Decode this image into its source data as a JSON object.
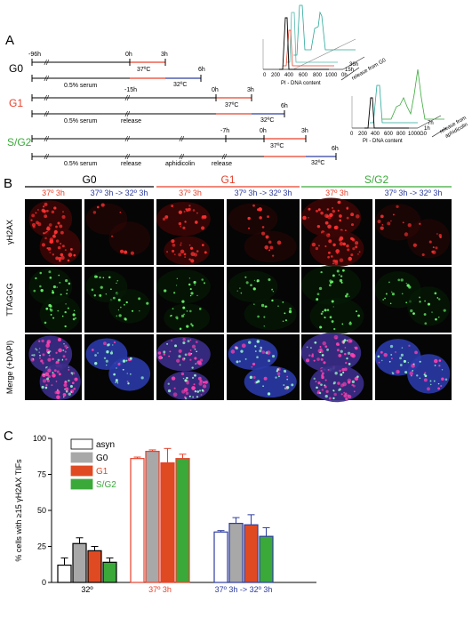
{
  "panel_a": {
    "letter": "A",
    "colors": {
      "black": "#000000",
      "red": "#e8412b",
      "blue": "#2e3da0",
      "green": "#3aa93a",
      "teal": "#2aa89a"
    },
    "g0": {
      "label": "G0",
      "t_neg96": "-96h",
      "t_0": "0h",
      "t_3": "3h",
      "t_6": "6h",
      "serum": "0.5% serum",
      "temp37": "37ºC",
      "temp32": "32ºC"
    },
    "g1": {
      "label": "G1",
      "t_neg15": "-15h",
      "t_0": "0h",
      "t_3": "3h",
      "t_6": "6h",
      "serum": "0.5% serum",
      "release": "release",
      "temp37": "37ºC",
      "temp32": "32ºC"
    },
    "sg2": {
      "label": "S/G2",
      "t_neg7": "-7h",
      "t_0": "0h",
      "t_3": "3h",
      "t_6": "6h",
      "serum": "0.5% serum",
      "release1": "release",
      "aphidicolin": "aphidicolin",
      "release2": "release",
      "temp37": "37ºC",
      "temp32": "32ºC"
    },
    "histo_g0": {
      "ticks": [
        "0",
        "200",
        "400",
        "600",
        "800",
        "1000"
      ],
      "xlabel": "PI - DNA content",
      "series_labels": [
        "36h",
        "15h",
        "0h"
      ],
      "caption": "release from G0"
    },
    "histo_sg2": {
      "ticks": [
        "0",
        "200",
        "400",
        "600",
        "800",
        "1000"
      ],
      "xlabel": "PI - DNA content",
      "series_labels": [
        "7h",
        "1h",
        "G0"
      ],
      "caption_line1": "release from",
      "caption_line2": "aphidicolin"
    }
  },
  "panel_b": {
    "letter": "B",
    "groups": [
      {
        "name": "G0",
        "color": "#000000"
      },
      {
        "name": "G1",
        "color": "#e8412b"
      },
      {
        "name": "S/G2",
        "color": "#3aa93a"
      }
    ],
    "col_labels": [
      {
        "text": "37º 3h",
        "color": "#e8412b"
      },
      {
        "text": "37º 3h -> 32º 3h",
        "color": "#2e3da0"
      },
      {
        "text": "37º 3h",
        "color": "#e8412b"
      },
      {
        "text": "37º 3h -> 32º 3h",
        "color": "#2e3da0"
      },
      {
        "text": "37º 3h",
        "color": "#e8412b"
      },
      {
        "text": "37º 3h -> 32º 3h",
        "color": "#2e3da0"
      }
    ],
    "row_labels": [
      "γH2AX",
      "TTAGGG",
      "Merge (+DAPI)"
    ]
  },
  "panel_c": {
    "letter": "C",
    "chart_data": {
      "type": "bar",
      "ylabel": "% cells with ≥15 γH2AX TIFs",
      "ylim": [
        0,
        100
      ],
      "yticks": [
        "0",
        "25",
        "50",
        "75",
        "100"
      ],
      "categories": [
        {
          "label": "32º",
          "color": "#000000"
        },
        {
          "label": "37º 3h",
          "color": "#e8412b"
        },
        {
          "label": "37º 3h -> 32º 3h",
          "color": "#2e3da0"
        }
      ],
      "series": [
        {
          "name": "asyn",
          "fill": "#ffffff",
          "values": [
            12,
            86,
            35
          ],
          "errors": [
            5,
            1,
            1
          ]
        },
        {
          "name": "G0",
          "fill": "#a8a8a8",
          "values": [
            27,
            91,
            41
          ],
          "errors": [
            4,
            1,
            4
          ]
        },
        {
          "name": "G1",
          "fill": "#e04a22",
          "values": [
            22,
            83,
            40
          ],
          "errors": [
            3,
            10,
            7
          ]
        },
        {
          "name": "S/G2",
          "fill": "#3aa93a",
          "values": [
            14,
            86,
            32
          ],
          "errors": [
            3,
            3,
            6
          ]
        }
      ]
    }
  }
}
